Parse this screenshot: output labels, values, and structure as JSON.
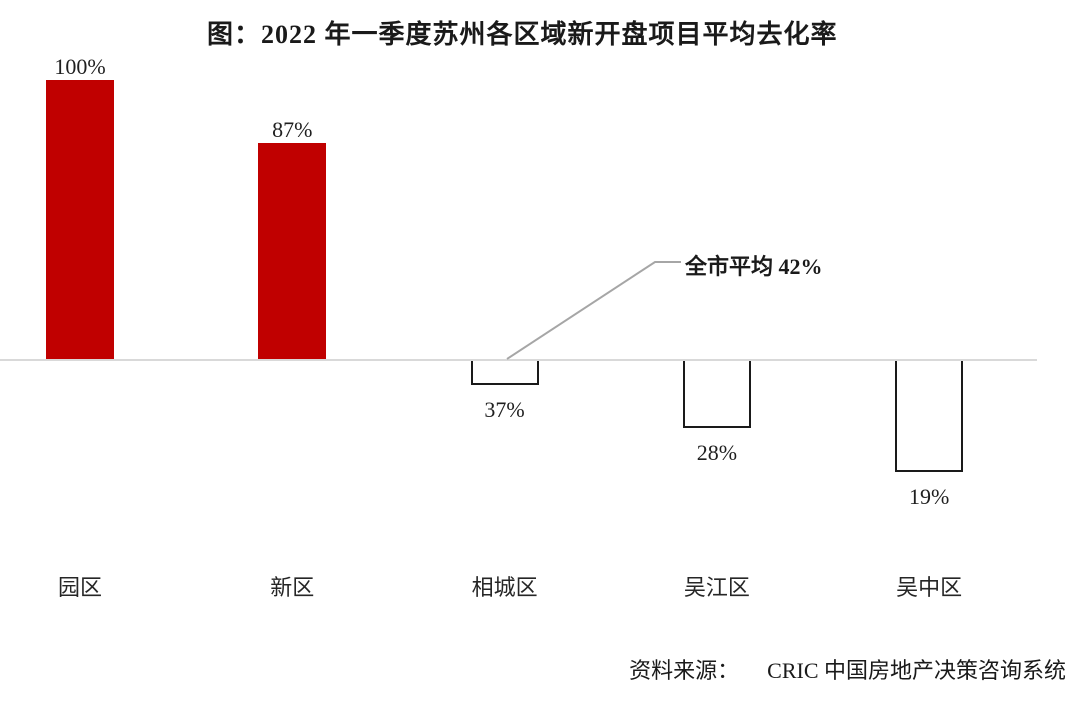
{
  "title": "图：2022 年一季度苏州各区域新开盘项目平均去化率",
  "annotation": {
    "label": "全市平均 42%"
  },
  "source": {
    "prefix": "资料来源：",
    "text": "CRIC 中国房地产决策咨询系统"
  },
  "colors": {
    "bar_above_average": "#c00000",
    "bar_below_average_border": "#1a1a1a",
    "axis_line": "#d9d9d9",
    "leader_line": "#a6a6a6"
  },
  "chart_data": {
    "type": "bar",
    "title": "图：2022 年一季度苏州各区域新开盘项目平均去化率",
    "categories": [
      "园区",
      "新区",
      "相城区",
      "吴江区",
      "吴中区"
    ],
    "values": [
      100,
      87,
      37,
      28,
      19
    ],
    "data_labels": [
      "100%",
      "87%",
      "37%",
      "28%",
      "19%"
    ],
    "unit": "percent",
    "baseline_value": 42,
    "baseline_label": "全市平均 42%",
    "xlabel": "",
    "ylabel": "",
    "grid": false,
    "legend": false,
    "axis_ticks_visible": false,
    "note": "Bars are drawn as deviation from the city average of 42%; values above average are solid red, values below average are hollow outlined bars below the baseline."
  }
}
